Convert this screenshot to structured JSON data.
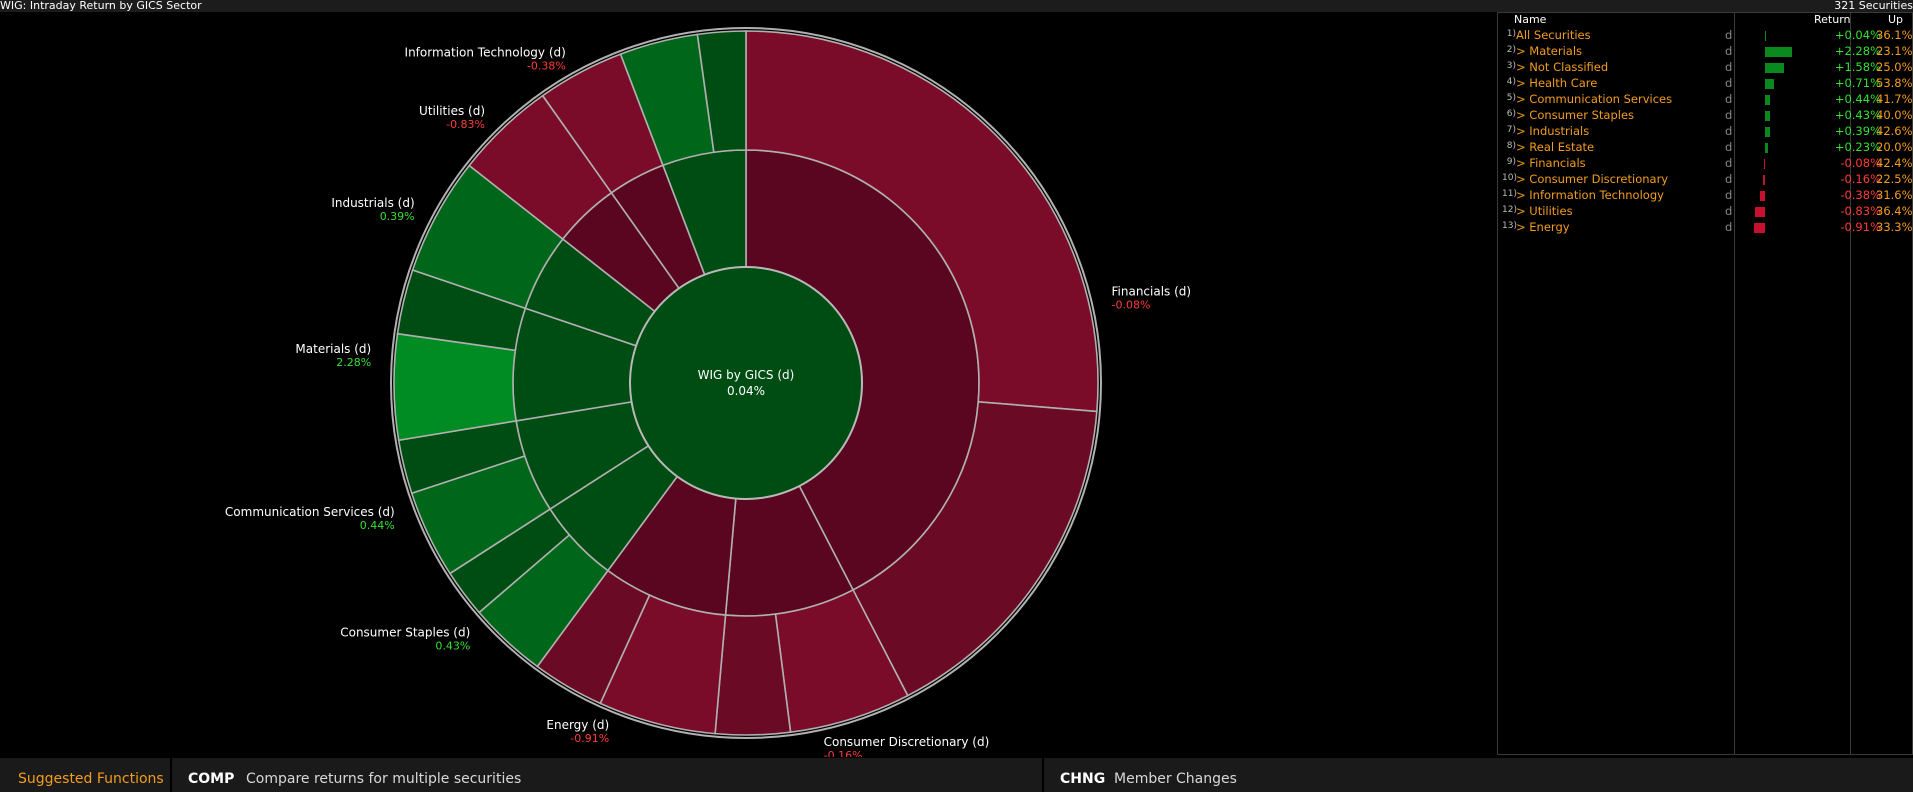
{
  "header": {
    "title": "WIG: Intraday Return by GICS Sector",
    "count": "321 Securities"
  },
  "colors": {
    "pos_dark": "#004d14",
    "pos_mid": "#00661a",
    "pos_bright": "#008c22",
    "neg_dark": "#5a0620",
    "neg_mid": "#6b0a24",
    "neg_bright": "#7a0c2a",
    "pos_text": "#33e033",
    "neg_text": "#ff3b3b",
    "accent": "#f39c1f"
  },
  "chart": {
    "center": {
      "name": "WIG by GICS (d)",
      "value": "0.04%"
    },
    "sectors": [
      {
        "name": "Financials (d)",
        "value": "-0.08%",
        "share": 42.4,
        "sign": -1
      },
      {
        "name": "Consumer Discretionary (d)",
        "value": "-0.16%",
        "share": 9.0,
        "sign": -1
      },
      {
        "name": "Energy (d)",
        "value": "-0.91%",
        "share": 8.7,
        "sign": -1
      },
      {
        "name": "Consumer Staples (d)",
        "value": "0.43%",
        "share": 5.8,
        "sign": 1
      },
      {
        "name": "Communication Services (d)",
        "value": "0.44%",
        "share": 6.5,
        "sign": 1
      },
      {
        "name": "Materials (d)",
        "value": "2.28%",
        "share": 7.8,
        "sign": 1
      },
      {
        "name": "Industrials (d)",
        "value": "0.39%",
        "share": 5.4,
        "sign": 1
      },
      {
        "name": "Utilities (d)",
        "value": "-0.83%",
        "share": 4.6,
        "sign": -1
      },
      {
        "name": "Information Technology (d)",
        "value": "-0.38%",
        "share": 4.0,
        "sign": -1
      },
      {
        "name": "",
        "value": "",
        "share": 5.8,
        "sign": 1
      }
    ]
  },
  "table": {
    "headers": {
      "name": "Name",
      "return": "Return",
      "up": "Up"
    },
    "rows": [
      {
        "idx": "1)",
        "name": "All Securities",
        "d": "d",
        "ret": "+0.04%",
        "r": 0.04,
        "up": "36.1%"
      },
      {
        "idx": "2)",
        "name": "> Materials",
        "d": "d",
        "ret": "+2.28%",
        "r": 2.28,
        "up": "23.1%"
      },
      {
        "idx": "3)",
        "name": "> Not Classified",
        "d": "d",
        "ret": "+1.58%",
        "r": 1.58,
        "up": "25.0%"
      },
      {
        "idx": "4)",
        "name": "> Health Care",
        "d": "d",
        "ret": "+0.71%",
        "r": 0.71,
        "up": "53.8%"
      },
      {
        "idx": "5)",
        "name": "> Communication Services",
        "d": "d",
        "ret": "+0.44%",
        "r": 0.44,
        "up": "41.7%"
      },
      {
        "idx": "6)",
        "name": "> Consumer Staples",
        "d": "d",
        "ret": "+0.43%",
        "r": 0.43,
        "up": "40.0%"
      },
      {
        "idx": "7)",
        "name": "> Industrials",
        "d": "d",
        "ret": "+0.39%",
        "r": 0.39,
        "up": "42.6%"
      },
      {
        "idx": "8)",
        "name": "> Real Estate",
        "d": "d",
        "ret": "+0.23%",
        "r": 0.23,
        "up": "20.0%"
      },
      {
        "idx": "9)",
        "name": "> Financials",
        "d": "d",
        "ret": "-0.08%",
        "r": -0.08,
        "up": "42.4%"
      },
      {
        "idx": "10)",
        "name": "> Consumer Discretionary",
        "d": "d",
        "ret": "-0.16%",
        "r": -0.16,
        "up": "22.5%"
      },
      {
        "idx": "11)",
        "name": "> Information Technology",
        "d": "d",
        "ret": "-0.38%",
        "r": -0.38,
        "up": "31.6%"
      },
      {
        "idx": "12)",
        "name": "> Utilities",
        "d": "d",
        "ret": "-0.83%",
        "r": -0.83,
        "up": "36.4%"
      },
      {
        "idx": "13)",
        "name": "> Energy",
        "d": "d",
        "ret": "-0.91%",
        "r": -0.91,
        "up": "33.3%"
      }
    ]
  },
  "footer": {
    "suggested": "Suggested Functions",
    "f1_code": "COMP",
    "f1_desc": "Compare returns for multiple securities",
    "f2_code": "CHNG",
    "f2_desc": "Member Changes"
  }
}
